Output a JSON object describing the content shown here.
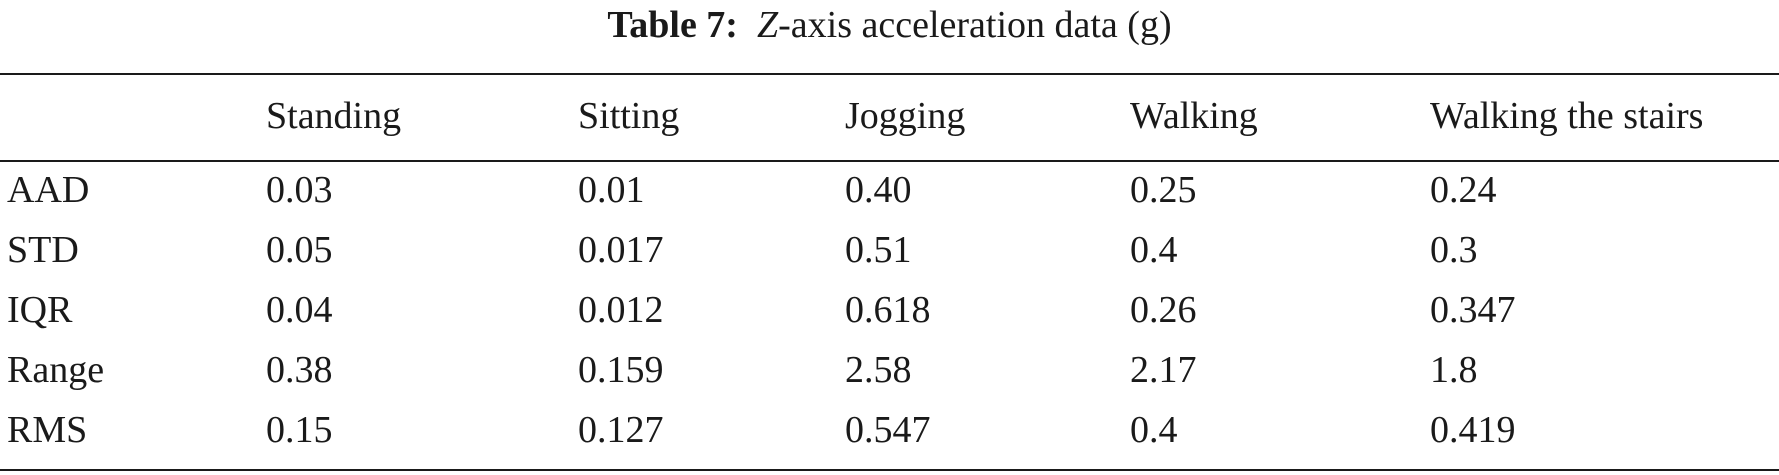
{
  "caption": {
    "label": "Table 7:",
    "axis_letter": "Z",
    "text": "-axis acceleration data (g)"
  },
  "table": {
    "columns": [
      "",
      "Standing",
      "Sitting",
      "Jogging",
      "Walking",
      "Walking the stairs"
    ],
    "rows": [
      {
        "label": "AAD",
        "values": [
          "0.03",
          "0.01",
          "0.40",
          "0.25",
          "0.24"
        ]
      },
      {
        "label": "STD",
        "values": [
          "0.05",
          "0.017",
          "0.51",
          "0.4",
          "0.3"
        ]
      },
      {
        "label": "IQR",
        "values": [
          "0.04",
          "0.012",
          "0.618",
          "0.26",
          "0.347"
        ]
      },
      {
        "label": "Range",
        "values": [
          "0.38",
          "0.159",
          "2.58",
          "2.17",
          "1.8"
        ]
      },
      {
        "label": "RMS",
        "values": [
          "0.15",
          "0.127",
          "0.547",
          "0.4",
          "0.419"
        ]
      }
    ]
  }
}
